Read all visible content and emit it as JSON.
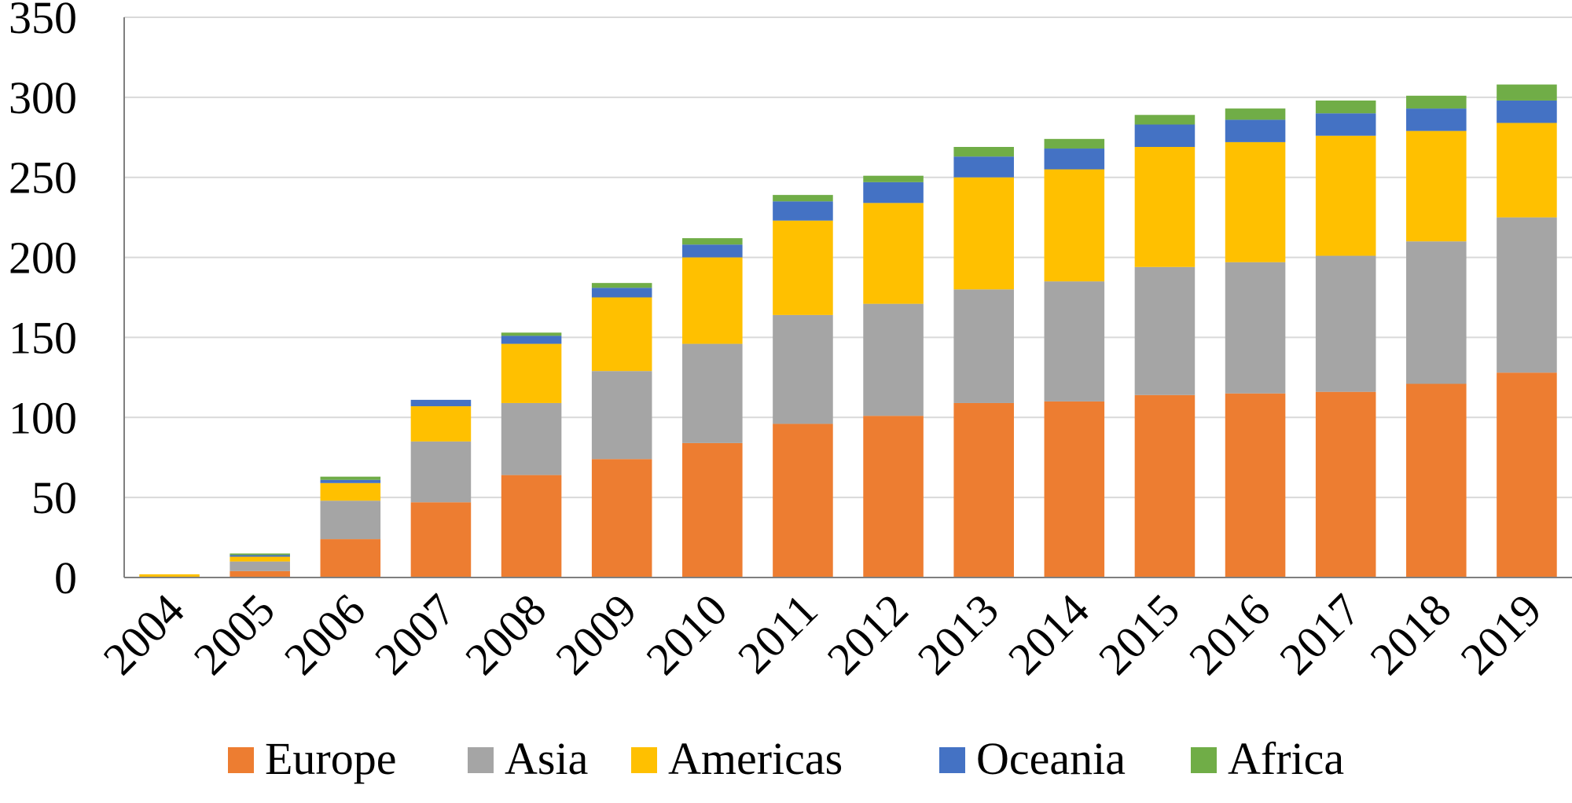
{
  "chart_data": {
    "type": "bar",
    "stacked": true,
    "title": "",
    "xlabel": "",
    "ylabel": "",
    "ylim": [
      0,
      350
    ],
    "yticks": [
      0,
      50,
      100,
      150,
      200,
      250,
      300,
      350
    ],
    "grid": true,
    "legend_position": "bottom",
    "categories": [
      "2004",
      "2005",
      "2006",
      "2007",
      "2008",
      "2009",
      "2010",
      "2011",
      "2012",
      "2013",
      "2014",
      "2015",
      "2016",
      "2017",
      "2018",
      "2019"
    ],
    "series": [
      {
        "name": "Europe",
        "color": "#ED7D31",
        "values": [
          0,
          4,
          24,
          47,
          64,
          74,
          84,
          96,
          101,
          109,
          110,
          114,
          115,
          116,
          121,
          128
        ]
      },
      {
        "name": "Asia",
        "color": "#A5A5A5",
        "values": [
          0,
          6,
          24,
          38,
          45,
          55,
          62,
          68,
          70,
          71,
          75,
          80,
          82,
          85,
          89,
          97
        ]
      },
      {
        "name": "Americas",
        "color": "#FFC000",
        "values": [
          2,
          3,
          11,
          22,
          37,
          46,
          54,
          59,
          63,
          70,
          70,
          75,
          75,
          75,
          69,
          59
        ]
      },
      {
        "name": "Oceania",
        "color": "#4472C4",
        "values": [
          0,
          1,
          2,
          4,
          5,
          6,
          8,
          12,
          13,
          13,
          13,
          14,
          14,
          14,
          14,
          14
        ]
      },
      {
        "name": "Africa",
        "color": "#70AD47",
        "values": [
          0,
          1,
          2,
          0,
          2,
          3,
          4,
          4,
          4,
          6,
          6,
          6,
          7,
          8,
          8,
          10
        ]
      }
    ]
  }
}
